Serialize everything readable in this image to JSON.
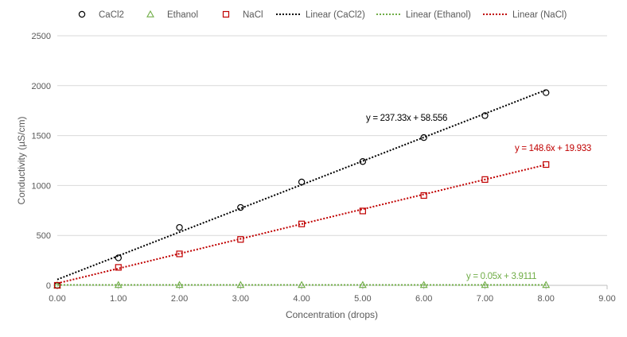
{
  "chart_data": {
    "type": "scatter",
    "xlabel": "Concentration (drops)",
    "ylabel": "Conductivity (µS/cm)",
    "xlim": [
      0,
      9
    ],
    "ylim": [
      0,
      2500
    ],
    "x_ticks": [
      0,
      1,
      2,
      3,
      4,
      5,
      6,
      7,
      8,
      9
    ],
    "x_tick_labels": [
      "0.00",
      "1.00",
      "2.00",
      "3.00",
      "4.00",
      "5.00",
      "6.00",
      "7.00",
      "8.00",
      "9.00"
    ],
    "y_ticks": [
      0,
      500,
      1000,
      1500,
      2000,
      2500
    ],
    "y_tick_labels": [
      "0",
      "500",
      "1000",
      "1500",
      "2000",
      "2500"
    ],
    "grid": "horizontal",
    "legend_position": "top",
    "series": [
      {
        "name": "CaCl2",
        "marker": "circle",
        "color": "#000000",
        "x": [
          0,
          1,
          2,
          3,
          4,
          5,
          6,
          7,
          8
        ],
        "y": [
          0,
          275,
          580,
          780,
          1035,
          1240,
          1480,
          1700,
          1930
        ]
      },
      {
        "name": "Ethanol",
        "marker": "triangle",
        "color": "#70ad47",
        "x": [
          0,
          1,
          2,
          3,
          4,
          5,
          6,
          7,
          8
        ],
        "y": [
          0,
          4,
          4,
          4,
          4,
          4,
          4,
          4,
          4
        ]
      },
      {
        "name": "NaCl",
        "marker": "square",
        "color": "#c00000",
        "x": [
          0,
          1,
          2,
          3,
          4,
          5,
          6,
          7,
          8
        ],
        "y": [
          0,
          180,
          315,
          460,
          615,
          745,
          900,
          1060,
          1210
        ]
      }
    ],
    "trendlines": [
      {
        "name": "Linear (CaCl2)",
        "color": "#000000",
        "slope": 237.33,
        "intercept": 58.556,
        "equation": "y = 237.33x + 58.556"
      },
      {
        "name": "Linear (Ethanol)",
        "color": "#70ad47",
        "slope": 0.05,
        "intercept": 3.9111,
        "equation": "y = 0.05x + 3.9111"
      },
      {
        "name": "Linear (NaCl)",
        "color": "#c00000",
        "slope": 148.6,
        "intercept": 19.933,
        "equation": "y = 148.6x + 19.933"
      }
    ]
  }
}
